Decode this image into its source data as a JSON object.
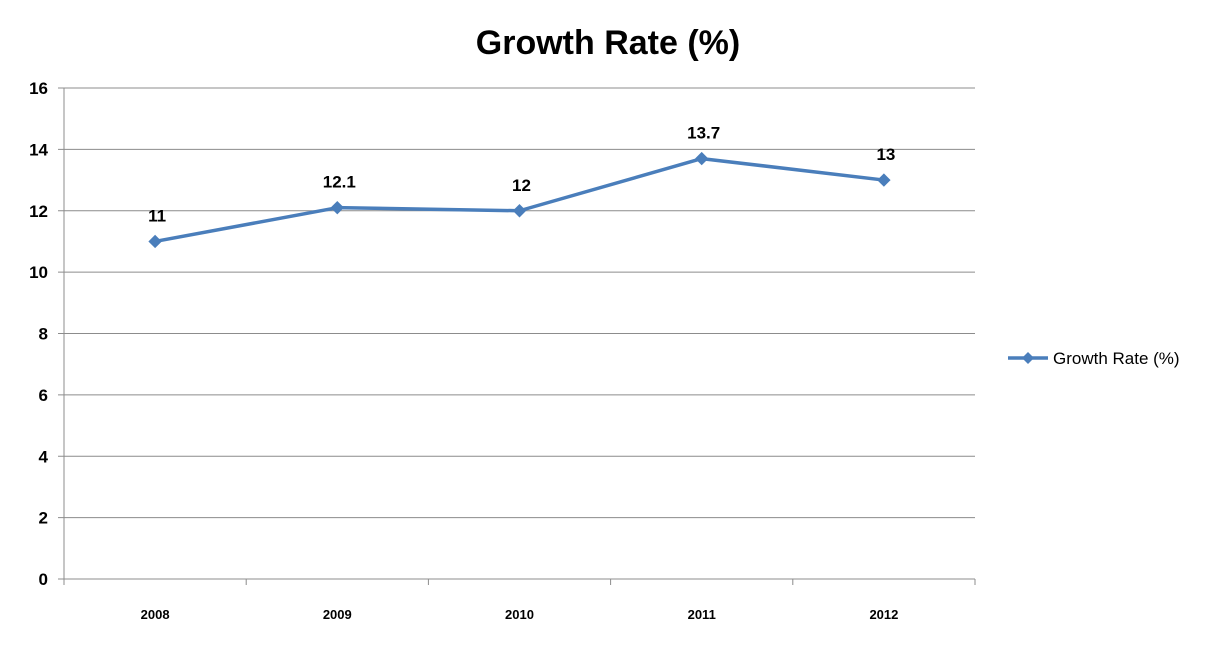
{
  "chart_data": {
    "type": "line",
    "title": "Growth Rate (%)",
    "xlabel": "",
    "ylabel": "",
    "categories": [
      "2008",
      "2009",
      "2010",
      "2011",
      "2012"
    ],
    "series": [
      {
        "name": "Growth Rate (%)",
        "values": [
          11,
          12.1,
          12,
          13.7,
          13
        ],
        "color": "#4a7ebb",
        "marker": "diamond"
      }
    ],
    "data_labels": [
      "11",
      "12.1",
      "12",
      "13.7",
      "13"
    ],
    "ylim": [
      0,
      16
    ],
    "yticks": [
      0,
      2,
      4,
      6,
      8,
      10,
      12,
      14,
      16
    ],
    "grid": "horizontal",
    "legend_position": "right",
    "colors": {
      "grid": "#8c8c8c",
      "axis": "#8c8c8c",
      "series": "#4a7ebb"
    }
  }
}
